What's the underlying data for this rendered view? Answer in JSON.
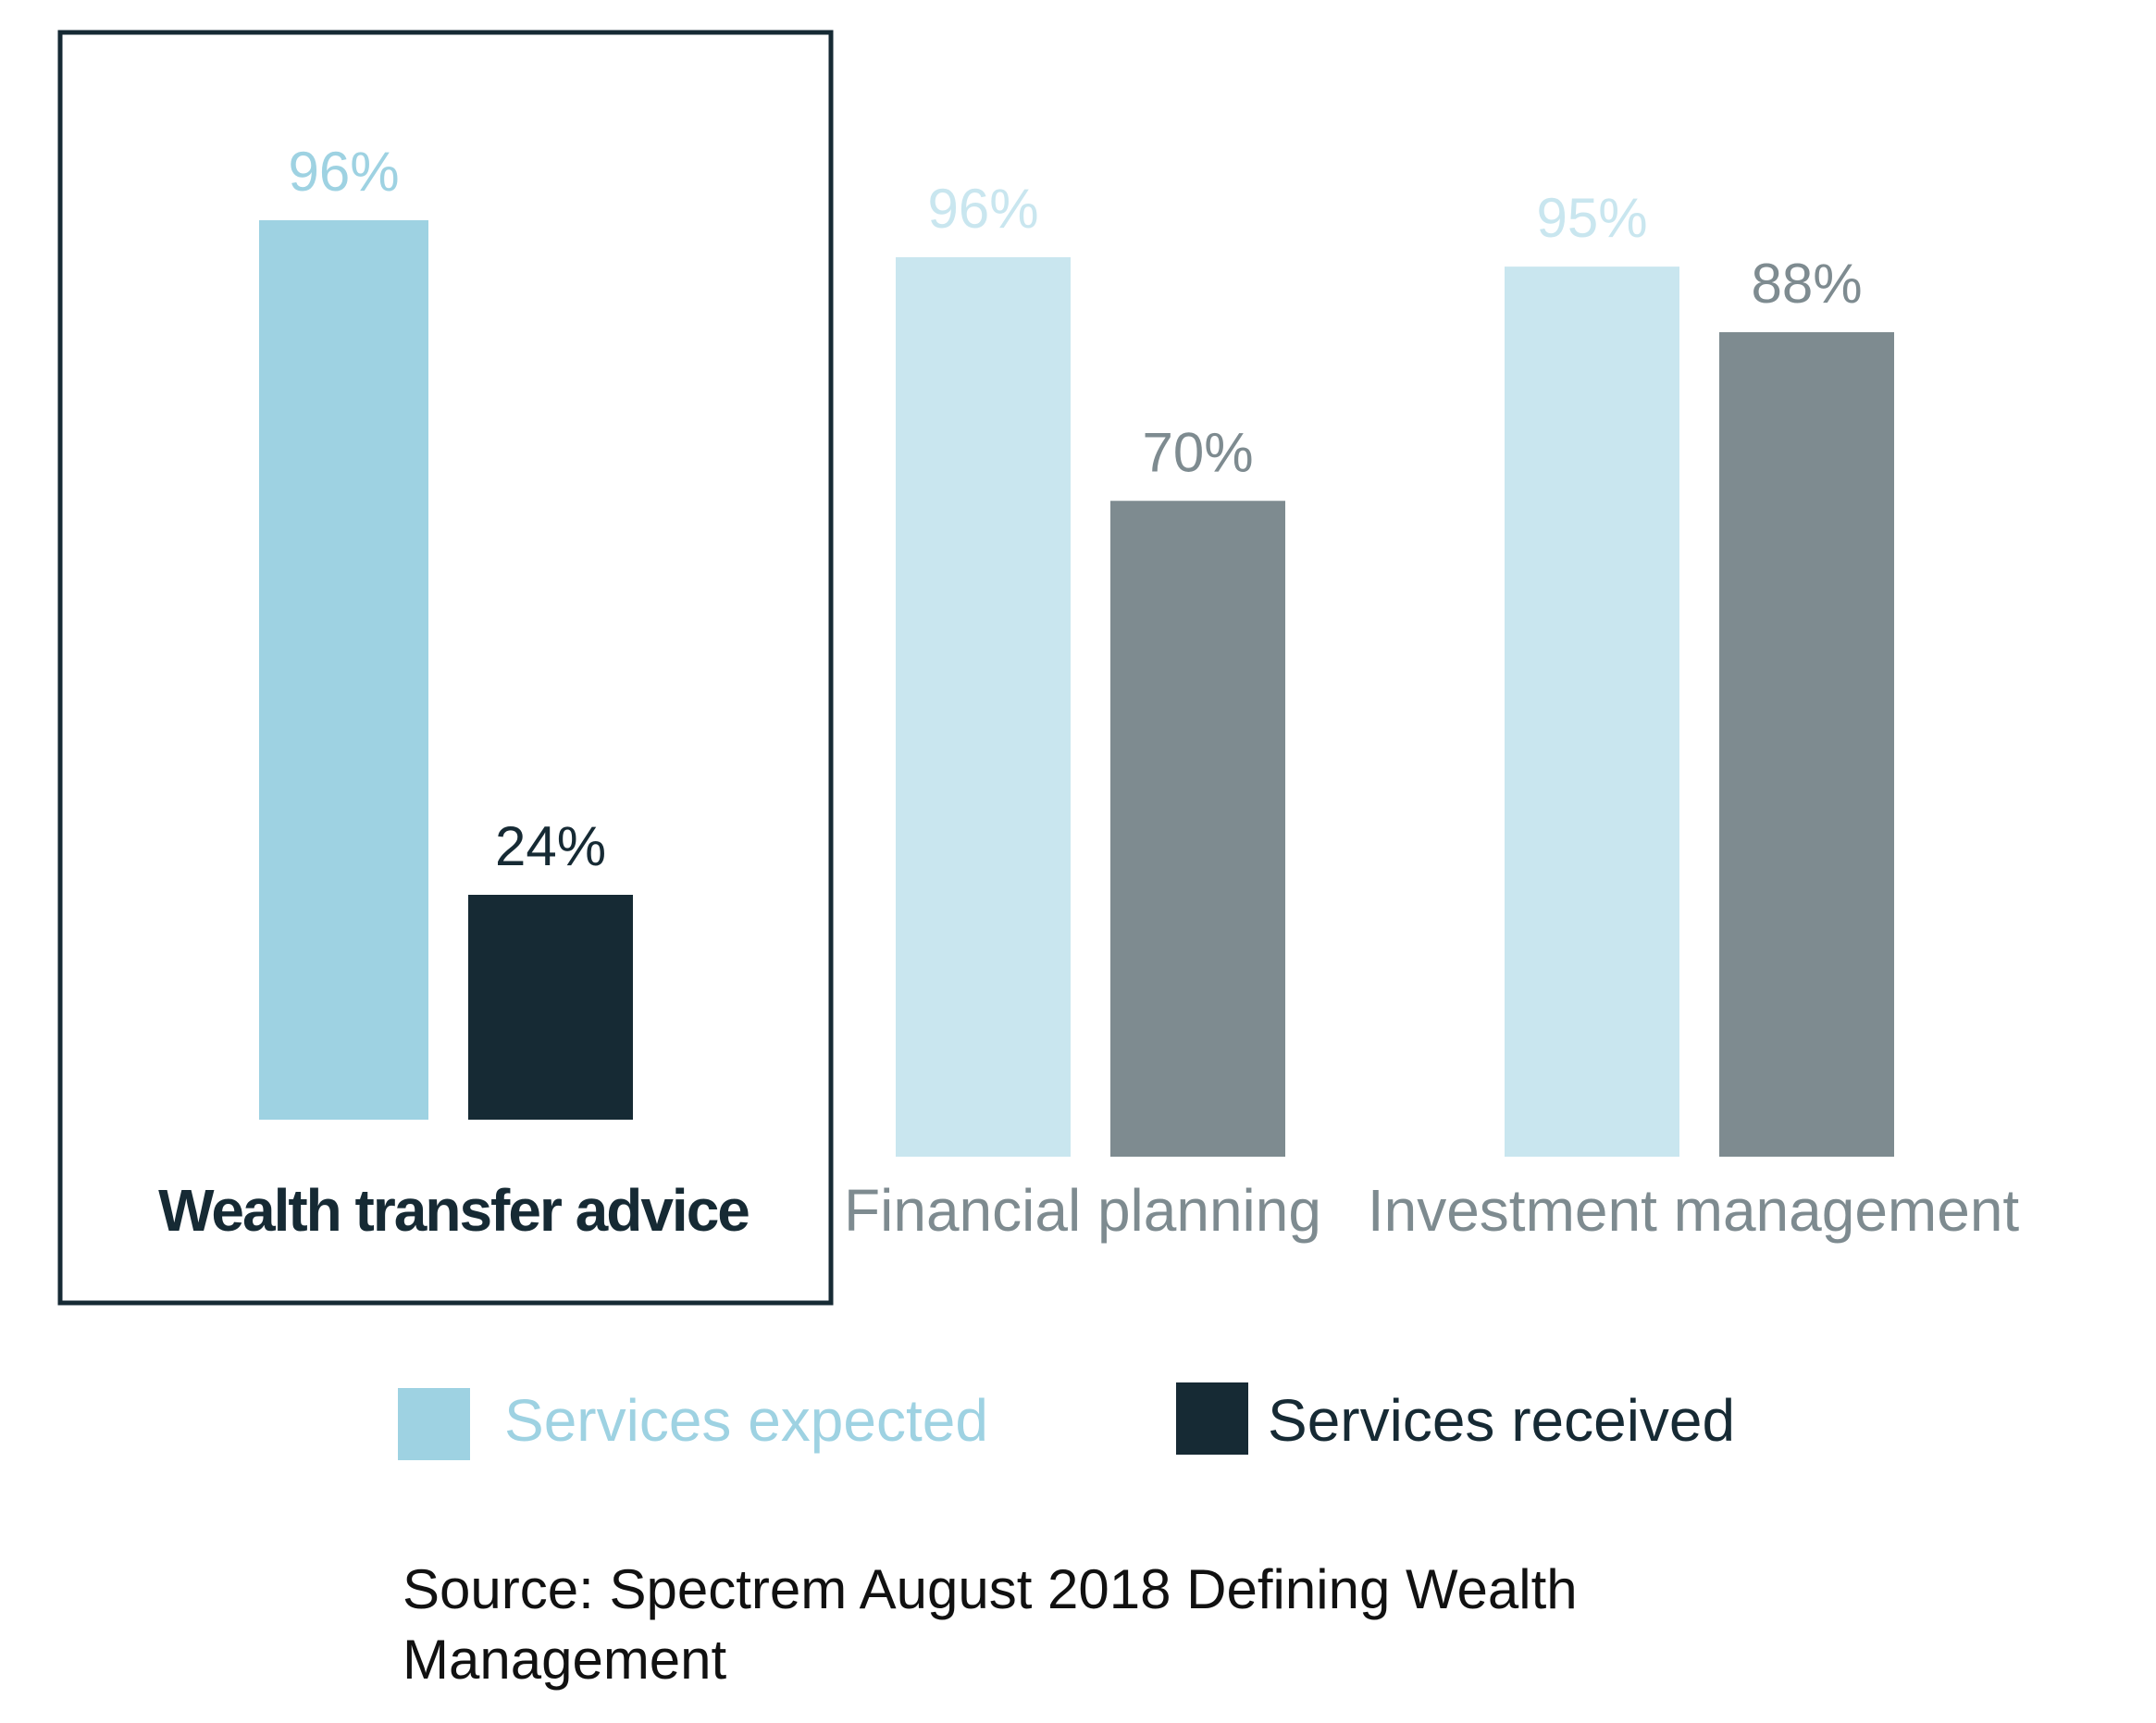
{
  "chart_data": {
    "type": "bar",
    "categories": [
      "Wealth transfer advice",
      "Financial planning",
      "Investment management"
    ],
    "highlighted_category": "Wealth transfer advice",
    "series": [
      {
        "name": "Services expected",
        "values": [
          96,
          96,
          95
        ],
        "labels": [
          "96%",
          "96%",
          "95%"
        ],
        "colors": [
          "#9ed2e2",
          "#c9e6ef",
          "#c9e6ef"
        ]
      },
      {
        "name": "Services received",
        "values": [
          24,
          70,
          88
        ],
        "labels": [
          "24%",
          "70%",
          "88%"
        ],
        "colors": [
          "#162a34",
          "#7e8b90",
          "#7e8b90"
        ]
      }
    ],
    "label_colors": {
      "expected": [
        "#9ed2e2",
        "#c9e6ef",
        "#c9e6ef"
      ],
      "received": [
        "#162a34",
        "#7e8b90",
        "#7e8b90"
      ],
      "category": [
        "#162a34",
        "#7e8b90",
        "#7e8b90"
      ]
    },
    "legend": {
      "position": "bottom",
      "items": [
        {
          "label": "Services expected",
          "color": "#9ed2e2"
        },
        {
          "label": "Services received",
          "color": "#162a34"
        }
      ]
    },
    "ylim": [
      0,
      100
    ],
    "grid": false,
    "xlabel": "",
    "ylabel": ""
  },
  "source": {
    "text": "Source: Spectrem August 2018 Defining Wealth Management"
  }
}
